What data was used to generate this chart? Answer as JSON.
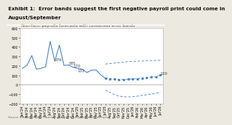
{
  "title_line1": "Exhibit 1:  Error bands suggest the first negative payroll print could come in",
  "title_line2": "August/September",
  "subtitle": "Non-farm payrolls forecasts with consensus error bands",
  "source": "Source: Bureau of Labor Statistics, Morgan Stanley Research Forecasts",
  "bg_color": "#ece9e0",
  "plot_bg": "#ffffff",
  "x_labels": [
    "Jan'24",
    "Feb'24",
    "Mar'24",
    "Apr'24",
    "May'24",
    "Jun'24",
    "Jul'24",
    "Aug'24",
    "Sep'24",
    "Oct'24",
    "Nov'24",
    "Dec'24",
    "Jan'25",
    "Feb'25",
    "Mar'25",
    "Apr'25",
    "May'25",
    "Jun'25",
    "Jul'25",
    "Aug'25",
    "Sep'25",
    "Oct'25",
    "Nov'25",
    "Dec'25",
    "Jan'26",
    "Feb'26",
    "Mar'26",
    "Apr'26",
    "May'26",
    "Jun'26",
    "Jul'26"
  ],
  "main_line": [
    175,
    210,
    310,
    165,
    175,
    190,
    460,
    250,
    420,
    205,
    210,
    185,
    175,
    165,
    130,
    155,
    157,
    105,
    70,
    55,
    55,
    50,
    55,
    60,
    65,
    70,
    75,
    80,
    85,
    90,
    105
  ],
  "upper_band": [
    null,
    null,
    null,
    null,
    null,
    null,
    null,
    null,
    null,
    null,
    null,
    null,
    null,
    null,
    null,
    null,
    null,
    null,
    220,
    225,
    230,
    235,
    240,
    245,
    248,
    250,
    252,
    255,
    257,
    258,
    260
  ],
  "lower_band": [
    null,
    null,
    null,
    null,
    null,
    null,
    null,
    null,
    null,
    null,
    null,
    null,
    null,
    null,
    null,
    null,
    null,
    null,
    -55,
    -80,
    -105,
    -120,
    -125,
    -128,
    -125,
    -120,
    -112,
    -105,
    -97,
    -90,
    -78
  ],
  "forecast_center": [
    null,
    null,
    null,
    null,
    null,
    null,
    null,
    null,
    null,
    null,
    null,
    null,
    null,
    null,
    null,
    null,
    null,
    null,
    70,
    65,
    60,
    57,
    57,
    60,
    62,
    65,
    70,
    75,
    80,
    85,
    105
  ],
  "split_idx": 18,
  "annotations": [
    {
      "xi": 6,
      "yi": 461,
      "text": ""
    },
    {
      "xi": 7,
      "yi": 252,
      "text": "276"
    },
    {
      "xi": 10,
      "yi": 212,
      "text": "185"
    },
    {
      "xi": 11,
      "yi": 187,
      "text": "170"
    },
    {
      "xi": 12,
      "yi": 132,
      "text": "133"
    },
    {
      "xi": 30,
      "yi": 107,
      "text": "120"
    }
  ],
  "ylim": [
    -200,
    600
  ],
  "yticks": [
    -200,
    -100,
    0,
    100,
    200,
    300,
    400,
    500,
    600
  ],
  "line_color": "#4a86c8",
  "zero_color": "#999999",
  "title_fontsize": 5.2,
  "subtitle_fontsize": 4.2,
  "tick_fontsize": 3.5,
  "ann_fontsize": 3.8,
  "source_fontsize": 3.0
}
